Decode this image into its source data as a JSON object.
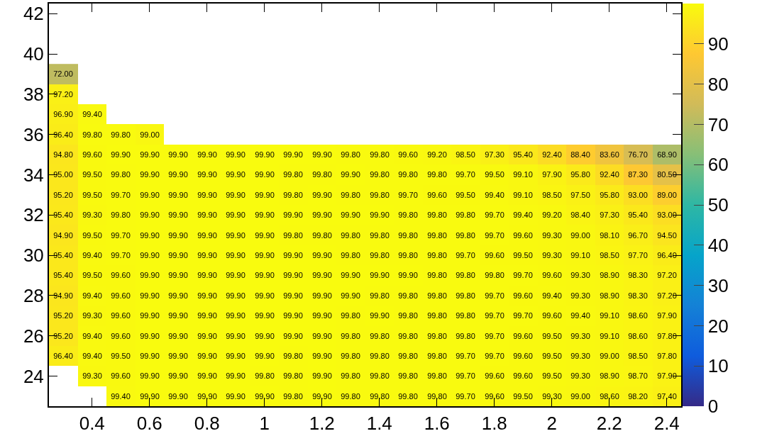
{
  "chart_data": {
    "type": "heatmap",
    "x": [
      0.3,
      0.4,
      0.5,
      0.6,
      0.7,
      0.8,
      0.9,
      1.0,
      1.1,
      1.2,
      1.3,
      1.4,
      1.5,
      1.6,
      1.7,
      1.8,
      1.9,
      2.0,
      2.1,
      2.2,
      2.3,
      2.4
    ],
    "y": [
      39,
      38,
      37,
      36,
      35,
      34,
      33,
      32,
      31,
      30,
      29,
      28,
      27,
      26,
      25,
      24,
      23
    ],
    "cell_labels": [
      [
        "72.00",
        null,
        null,
        null,
        null,
        null,
        null,
        null,
        null,
        null,
        null,
        null,
        null,
        null,
        null,
        null,
        null,
        null,
        null,
        null,
        null,
        null
      ],
      [
        "97.20",
        null,
        null,
        null,
        null,
        null,
        null,
        null,
        null,
        null,
        null,
        null,
        null,
        null,
        null,
        null,
        null,
        null,
        null,
        null,
        null,
        null
      ],
      [
        "96.90",
        "99.40",
        null,
        null,
        null,
        null,
        null,
        null,
        null,
        null,
        null,
        null,
        null,
        null,
        null,
        null,
        null,
        null,
        null,
        null,
        null,
        null
      ],
      [
        "96.40",
        "99.80",
        "99.80",
        "99.00",
        null,
        null,
        null,
        null,
        null,
        null,
        null,
        null,
        null,
        null,
        null,
        null,
        null,
        null,
        null,
        null,
        null,
        null
      ],
      [
        "94.80",
        "99.60",
        "99.90",
        "99.90",
        "99.90",
        "99.90",
        "99.90",
        "99.90",
        "99.90",
        "99.90",
        "99.80",
        "99.80",
        "99.60",
        "99.20",
        "98.50",
        "97.30",
        "95.40",
        "92.40",
        "88.40",
        "83.60",
        "76.70",
        "68.90"
      ],
      [
        "95.00",
        "99.50",
        "99.80",
        "99.90",
        "99.90",
        "99.90",
        "99.90",
        "99.90",
        "99.80",
        "99.80",
        "99.90",
        "99.80",
        "99.80",
        "99.80",
        "99.70",
        "99.50",
        "99.10",
        "97.90",
        "95.80",
        "92.40",
        "87.30",
        "80.50"
      ],
      [
        "95.20",
        "99.50",
        "99.70",
        "99.90",
        "99.90",
        "99.90",
        "99.90",
        "99.90",
        "99.80",
        "99.90",
        "99.80",
        "99.80",
        "99.70",
        "99.60",
        "99.50",
        "99.40",
        "99.10",
        "98.50",
        "97.50",
        "95.80",
        "93.00",
        "89.00"
      ],
      [
        "95.40",
        "99.30",
        "99.80",
        "99.90",
        "99.90",
        "99.90",
        "99.90",
        "99.90",
        "99.90",
        "99.90",
        "99.90",
        "99.90",
        "99.80",
        "99.80",
        "99.80",
        "99.70",
        "99.40",
        "99.20",
        "98.40",
        "97.30",
        "95.40",
        "93.00"
      ],
      [
        "94.90",
        "99.50",
        "99.70",
        "99.90",
        "99.90",
        "99.90",
        "99.90",
        "99.90",
        "99.80",
        "99.80",
        "99.80",
        "99.80",
        "99.80",
        "99.80",
        "99.80",
        "99.70",
        "99.60",
        "99.30",
        "99.00",
        "98.10",
        "96.70",
        "94.50"
      ],
      [
        "95.40",
        "99.40",
        "99.70",
        "99.90",
        "99.90",
        "99.90",
        "99.90",
        "99.90",
        "99.90",
        "99.90",
        "99.80",
        "99.80",
        "99.80",
        "99.80",
        "99.70",
        "99.60",
        "99.50",
        "99.30",
        "99.10",
        "98.50",
        "97.70",
        "96.40"
      ],
      [
        "95.40",
        "99.50",
        "99.60",
        "99.90",
        "99.90",
        "99.90",
        "99.90",
        "99.90",
        "99.90",
        "99.90",
        "99.90",
        "99.90",
        "99.90",
        "99.80",
        "99.80",
        "99.80",
        "99.70",
        "99.60",
        "99.30",
        "98.90",
        "98.30",
        "97.20"
      ],
      [
        "94.90",
        "99.40",
        "99.60",
        "99.90",
        "99.90",
        "99.90",
        "99.90",
        "99.90",
        "99.90",
        "99.90",
        "99.90",
        "99.80",
        "99.80",
        "99.80",
        "99.80",
        "99.70",
        "99.60",
        "99.40",
        "99.30",
        "98.90",
        "98.30",
        "97.20"
      ],
      [
        "95.20",
        "99.30",
        "99.60",
        "99.90",
        "99.90",
        "99.90",
        "99.90",
        "99.90",
        "99.90",
        "99.90",
        "99.80",
        "99.90",
        "99.80",
        "99.80",
        "99.80",
        "99.70",
        "99.70",
        "99.60",
        "99.40",
        "99.10",
        "98.60",
        "97.90"
      ],
      [
        "95.20",
        "99.40",
        "99.60",
        "99.90",
        "99.90",
        "99.90",
        "99.90",
        "99.90",
        "99.90",
        "99.90",
        "99.80",
        "99.80",
        "99.80",
        "99.80",
        "99.80",
        "99.70",
        "99.60",
        "99.50",
        "99.30",
        "99.10",
        "98.60",
        "97.80"
      ],
      [
        "96.40",
        "99.40",
        "99.50",
        "99.90",
        "99.90",
        "99.90",
        "99.90",
        "99.90",
        "99.80",
        "99.90",
        "99.80",
        "99.80",
        "99.80",
        "99.80",
        "99.70",
        "99.70",
        "99.60",
        "99.50",
        "99.30",
        "99.00",
        "98.50",
        "97.80"
      ],
      [
        null,
        "99.30",
        "99.60",
        "99.90",
        "99.90",
        "99.90",
        "99.90",
        "99.80",
        "99.80",
        "99.90",
        "99.80",
        "99.80",
        "99.80",
        "99.80",
        "99.70",
        "99.60",
        "99.60",
        "99.50",
        "99.30",
        "98.90",
        "98.70",
        "97.90"
      ],
      [
        null,
        null,
        "99.40",
        "99.90",
        "99.90",
        "99.90",
        "99.90",
        "99.90",
        "99.80",
        "99.90",
        "99.80",
        "99.80",
        "99.80",
        "99.80",
        "99.70",
        "99.60",
        "99.50",
        "99.30",
        "99.00",
        "98.60",
        "98.20",
        "97.40"
      ]
    ],
    "cells": [
      [
        72.0,
        null,
        null,
        null,
        null,
        null,
        null,
        null,
        null,
        null,
        null,
        null,
        null,
        null,
        null,
        null,
        null,
        null,
        null,
        null,
        null,
        null
      ],
      [
        97.2,
        null,
        null,
        null,
        null,
        null,
        null,
        null,
        null,
        null,
        null,
        null,
        null,
        null,
        null,
        null,
        null,
        null,
        null,
        null,
        null,
        null
      ],
      [
        96.9,
        99.4,
        null,
        null,
        null,
        null,
        null,
        null,
        null,
        null,
        null,
        null,
        null,
        null,
        null,
        null,
        null,
        null,
        null,
        null,
        null,
        null
      ],
      [
        96.4,
        99.8,
        99.8,
        99.0,
        null,
        null,
        null,
        null,
        null,
        null,
        null,
        null,
        null,
        null,
        null,
        null,
        null,
        null,
        null,
        null,
        null,
        null
      ],
      [
        94.8,
        99.6,
        99.9,
        99.9,
        99.9,
        99.9,
        99.9,
        99.9,
        99.9,
        99.9,
        99.8,
        99.8,
        99.6,
        99.2,
        98.5,
        97.3,
        95.4,
        92.4,
        88.4,
        83.6,
        76.7,
        68.9
      ],
      [
        95.0,
        99.5,
        99.8,
        99.9,
        99.9,
        99.9,
        99.9,
        99.9,
        99.8,
        99.8,
        99.9,
        99.8,
        99.8,
        99.8,
        99.7,
        99.5,
        99.1,
        97.9,
        95.8,
        92.4,
        87.3,
        80.5
      ],
      [
        95.2,
        99.5,
        99.7,
        99.9,
        99.9,
        99.9,
        99.9,
        99.9,
        99.8,
        99.9,
        99.8,
        99.8,
        99.7,
        99.6,
        99.5,
        99.4,
        99.1,
        98.5,
        97.5,
        95.8,
        93.0,
        89.0
      ],
      [
        95.4,
        99.3,
        99.8,
        99.9,
        99.9,
        99.9,
        99.9,
        99.9,
        99.9,
        99.9,
        99.9,
        99.9,
        99.8,
        99.8,
        99.8,
        99.7,
        99.4,
        99.2,
        98.4,
        97.3,
        95.4,
        93.0
      ],
      [
        94.9,
        99.5,
        99.7,
        99.9,
        99.9,
        99.9,
        99.9,
        99.9,
        99.8,
        99.8,
        99.8,
        99.8,
        99.8,
        99.8,
        99.8,
        99.7,
        99.6,
        99.3,
        99.0,
        98.1,
        96.7,
        94.5
      ],
      [
        95.4,
        99.4,
        99.7,
        99.9,
        99.9,
        99.9,
        99.9,
        99.9,
        99.9,
        99.9,
        99.8,
        99.8,
        99.8,
        99.8,
        99.7,
        99.6,
        99.5,
        99.3,
        99.1,
        98.5,
        97.7,
        96.4
      ],
      [
        95.4,
        99.5,
        99.6,
        99.9,
        99.9,
        99.9,
        99.9,
        99.9,
        99.9,
        99.9,
        99.9,
        99.9,
        99.9,
        99.8,
        99.8,
        99.8,
        99.7,
        99.6,
        99.3,
        98.9,
        98.3,
        97.2
      ],
      [
        94.9,
        99.4,
        99.6,
        99.9,
        99.9,
        99.9,
        99.9,
        99.9,
        99.9,
        99.9,
        99.9,
        99.8,
        99.8,
        99.8,
        99.8,
        99.7,
        99.6,
        99.4,
        99.3,
        98.9,
        98.3,
        97.2
      ],
      [
        95.2,
        99.3,
        99.6,
        99.9,
        99.9,
        99.9,
        99.9,
        99.9,
        99.9,
        99.9,
        99.8,
        99.9,
        99.8,
        99.8,
        99.8,
        99.7,
        99.7,
        99.6,
        99.4,
        99.1,
        98.6,
        97.9
      ],
      [
        95.2,
        99.4,
        99.6,
        99.9,
        99.9,
        99.9,
        99.9,
        99.9,
        99.9,
        99.9,
        99.8,
        99.8,
        99.8,
        99.8,
        99.8,
        99.7,
        99.6,
        99.5,
        99.3,
        99.1,
        98.6,
        97.8
      ],
      [
        96.4,
        99.4,
        99.5,
        99.9,
        99.9,
        99.9,
        99.9,
        99.9,
        99.8,
        99.9,
        99.8,
        99.8,
        99.8,
        99.8,
        99.7,
        99.7,
        99.6,
        99.5,
        99.3,
        99.0,
        98.5,
        97.8
      ],
      [
        null,
        99.3,
        99.6,
        99.9,
        99.9,
        99.9,
        99.9,
        99.8,
        99.8,
        99.9,
        99.8,
        99.8,
        99.8,
        99.8,
        99.7,
        99.6,
        99.6,
        99.5,
        99.3,
        98.9,
        98.7,
        97.9
      ],
      [
        null,
        null,
        99.4,
        99.9,
        99.9,
        99.9,
        99.9,
        99.9,
        99.8,
        99.9,
        99.8,
        99.8,
        99.8,
        99.8,
        99.7,
        99.6,
        99.5,
        99.3,
        99.0,
        98.6,
        98.2,
        97.4
      ]
    ],
    "xlim": [
      0.25,
      2.45
    ],
    "xticks": [
      0.4,
      0.6,
      0.8,
      1,
      1.2,
      1.4,
      1.6,
      1.8,
      2,
      2.2,
      2.4
    ],
    "ylim": [
      22.5,
      42.5
    ],
    "yticks": [
      24,
      26,
      28,
      30,
      32,
      34,
      36,
      38,
      40,
      42
    ],
    "clim": [
      0,
      100
    ],
    "cticks": [
      0,
      10,
      20,
      30,
      40,
      50,
      60,
      70,
      80,
      90
    ],
    "grid": false
  }
}
